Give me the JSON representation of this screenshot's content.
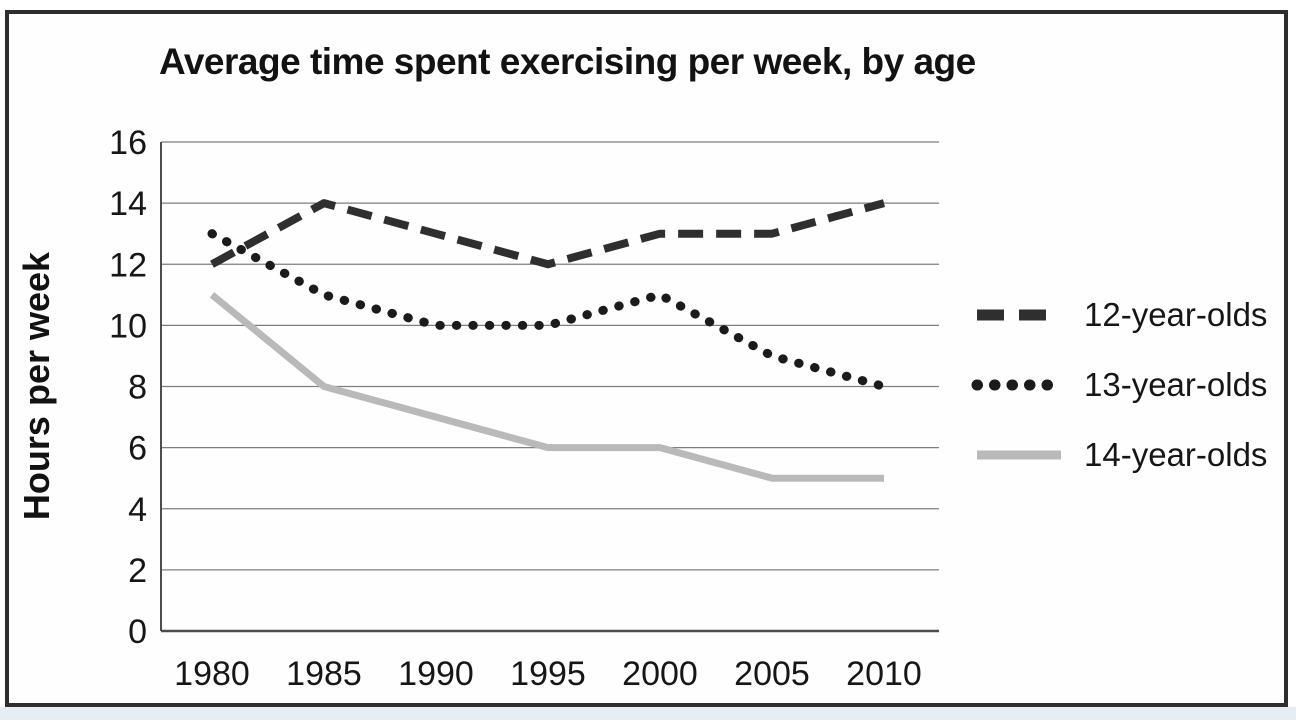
{
  "page": {
    "kind": "scanned line chart figure"
  },
  "palette": {
    "frame_border": "#2e2e2e",
    "page_edge_strip": "#e6eef5",
    "gridline": "#7e7e7e",
    "axis": "#4d4d4d",
    "text": "#161616",
    "background": "#fefefe"
  },
  "chart_data": {
    "type": "line",
    "title": "Average time spent exercising per week, by age",
    "xlabel": "",
    "ylabel": "Hours per week",
    "x": [
      "1980",
      "1985",
      "1990",
      "1995",
      "2000",
      "2005",
      "2010"
    ],
    "ylim": [
      0,
      16
    ],
    "ytick_step": 2,
    "yticks": [
      "0",
      "2",
      "4",
      "6",
      "8",
      "10",
      "12",
      "14",
      "16"
    ],
    "grid": true,
    "legend_position": "right",
    "series": [
      {
        "name": "12-year-olds",
        "style": "dashed",
        "color": "#2f2f2f",
        "values": [
          12,
          14,
          13,
          12,
          13,
          13,
          14
        ]
      },
      {
        "name": "13-year-olds",
        "style": "dotted",
        "color": "#1b1b1b",
        "values": [
          13,
          11,
          10,
          10,
          11,
          9,
          8
        ]
      },
      {
        "name": "14-year-olds",
        "style": "solid",
        "color": "#b9b9b9",
        "values": [
          11,
          8,
          7,
          6,
          6,
          5,
          5
        ]
      }
    ]
  }
}
